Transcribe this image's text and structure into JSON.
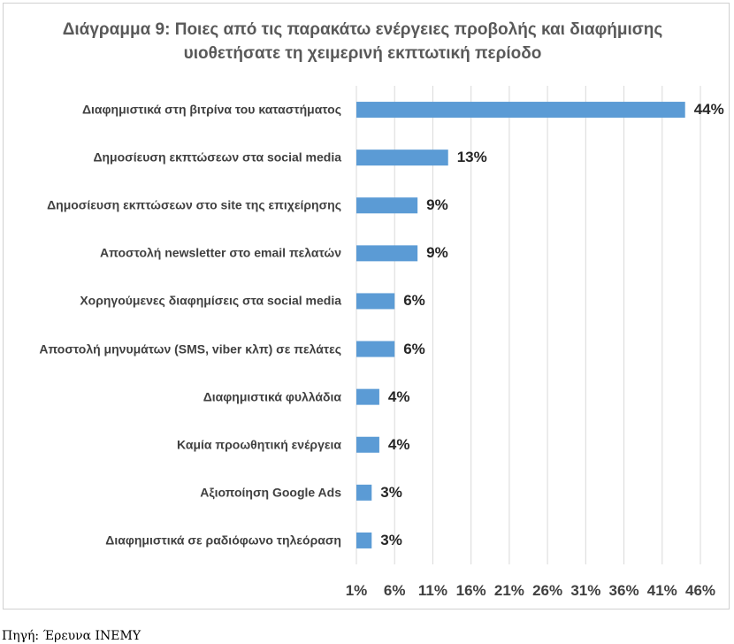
{
  "chart_data": {
    "type": "bar",
    "orientation": "horizontal",
    "title": "Διάγραμμα 9: Ποιες από τις παρακάτω ενέργειες προβολής και διαφήμισης υιοθετήσατε τη χειμερινή εκπτωτική περίοδο",
    "categories": [
      "Διαφημιστικά στη βιτρίνα του καταστήματος",
      "Δημοσίευση εκπτώσεων στα social media",
      "Δημοσίευση εκπτώσεων στο site της επιχείρησης",
      "Αποστολή newsletter στο email πελατών",
      "Χορηγούμενες διαφημίσεις στα social media",
      "Αποστολή μηνυμάτων (SMS, viber κλπ) σε πελάτες",
      "Διαφημιστικά φυλλάδια",
      "Καμία προωθητική ενέργεια",
      "Αξιοποίηση Google Ads",
      "Διαφημιστικά σε ραδιόφωνο τηλεόραση"
    ],
    "values": [
      44,
      13,
      9,
      9,
      6,
      6,
      4,
      4,
      3,
      3
    ],
    "value_labels": [
      "44%",
      "13%",
      "9%",
      "9%",
      "6%",
      "6%",
      "4%",
      "4%",
      "3%",
      "3%"
    ],
    "color": "#5b9bd5",
    "xlim": [
      1,
      46
    ],
    "xticks": [
      {
        "value": 1,
        "label": "1%"
      },
      {
        "value": 6,
        "label": "6%"
      },
      {
        "value": 11,
        "label": "11%"
      },
      {
        "value": 16,
        "label": "16%"
      },
      {
        "value": 21,
        "label": "21%"
      },
      {
        "value": 26,
        "label": "26%"
      },
      {
        "value": 31,
        "label": "31%"
      },
      {
        "value": 36,
        "label": "36%"
      },
      {
        "value": 41,
        "label": "41%"
      },
      {
        "value": 46,
        "label": "46%"
      }
    ],
    "grid": true
  },
  "source": "Πηγή: Έρευνα ΙΝΕΜΥ"
}
